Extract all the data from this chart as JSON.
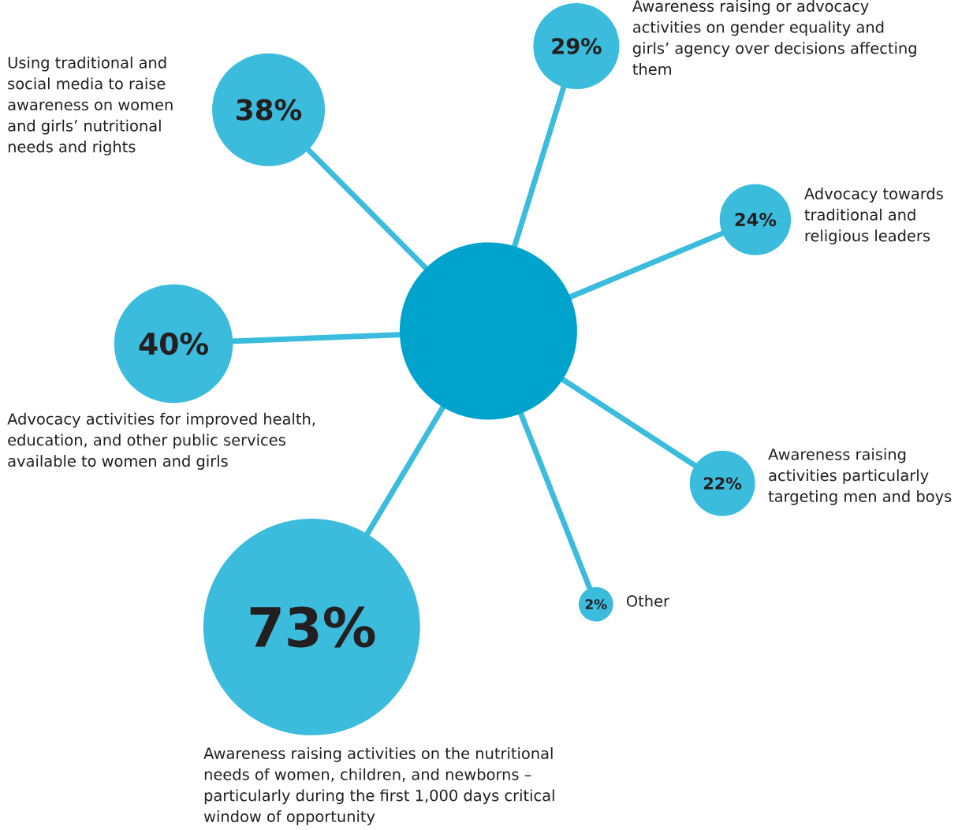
{
  "chart_data": {
    "type": "other",
    "categories": [
      "Awareness raising or advocacy activities on gender equality and girls’ agency over decisions affecting them",
      "Advocacy towards traditional and religious leaders",
      "Awareness raising activities particularly targeting men and boys",
      "Other",
      "Awareness raising activities on the nutritional needs of women, children, and newborns – particularly during the first 1,000 days critical window of opportunity",
      "Advocacy activities for improved health, education, and other public services available to women and girls",
      "Using traditional and social media to raise awareness on women and girls’ nutritional needs and rights"
    ],
    "values": [
      29,
      24,
      22,
      2,
      73,
      40,
      38
    ],
    "value_labels": [
      "29%",
      "24%",
      "22%",
      "2%",
      "73%",
      "40%",
      "38%"
    ],
    "color": "#3bbcdc"
  }
}
